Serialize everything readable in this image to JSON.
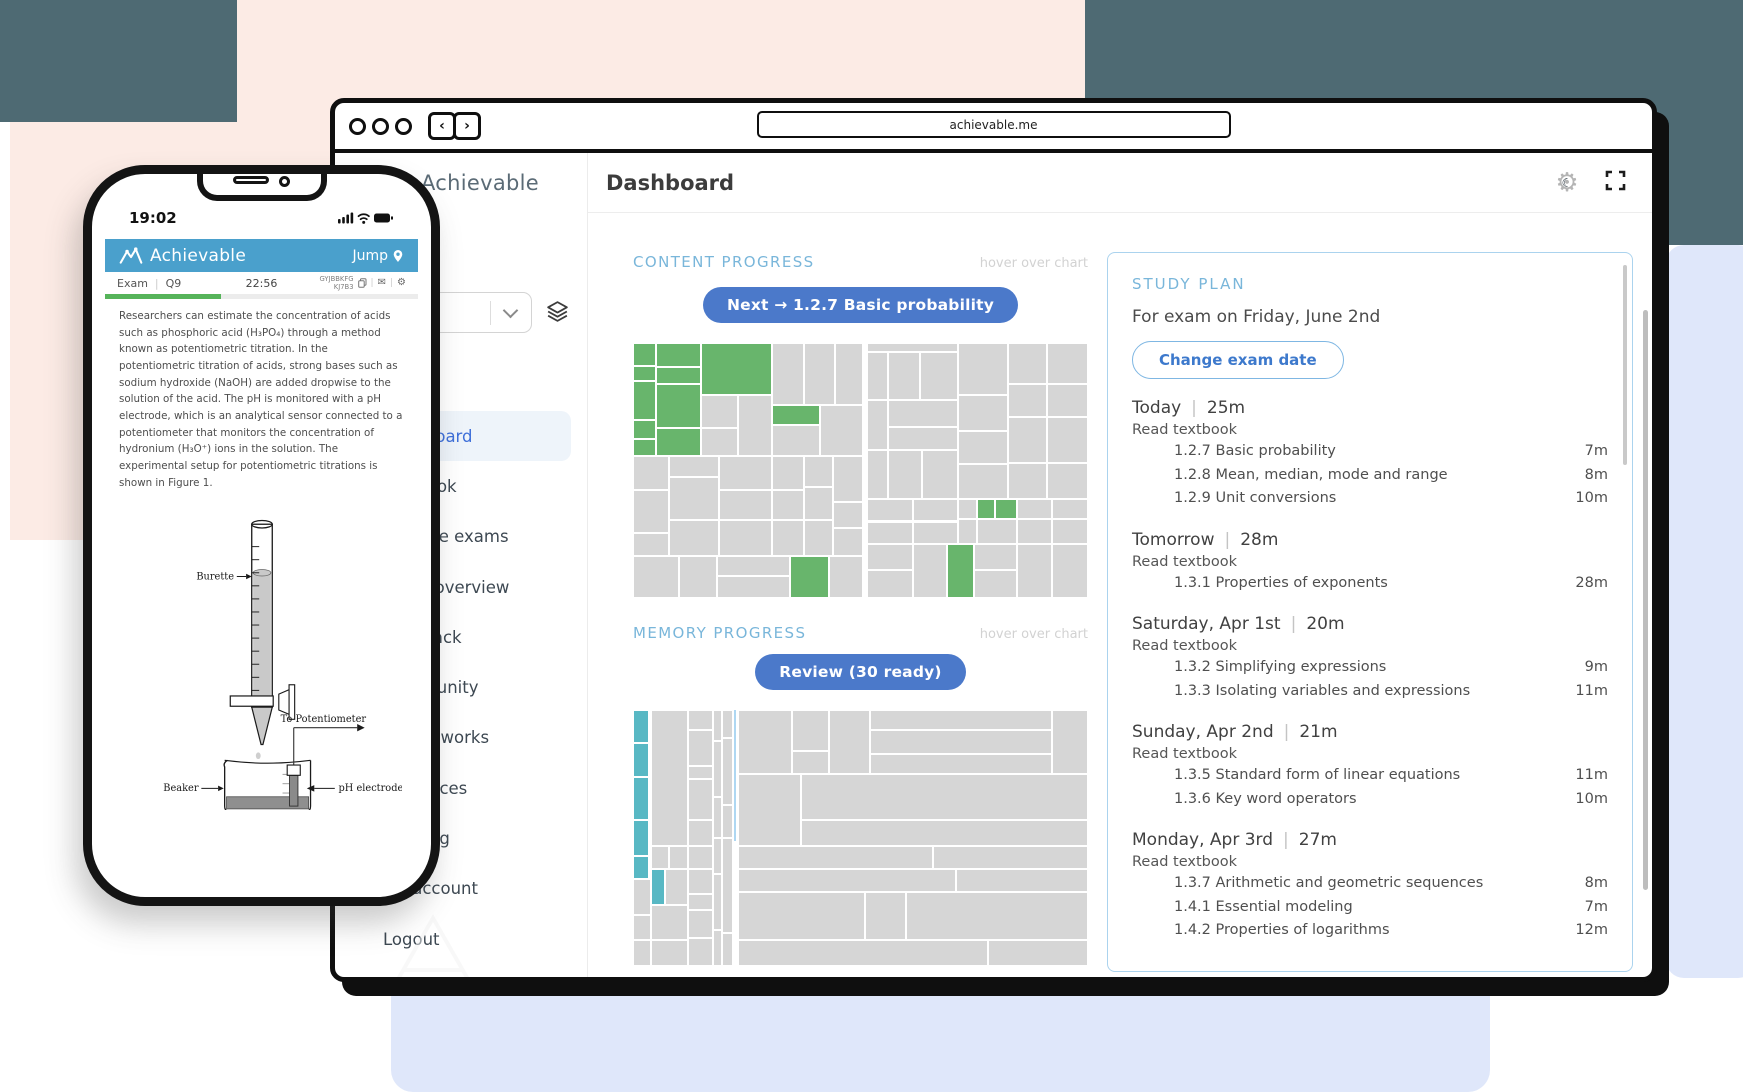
{
  "decor": {
    "pink": "#fcebe5",
    "slate": "#4e6a73",
    "lavender": "#dfe7fa"
  },
  "browser": {
    "url": "achievable.me",
    "back": "‹",
    "forward": "›"
  },
  "app": {
    "brand": "Achievable",
    "page_title": "Dashboard",
    "header_icons": [
      "dark-mode-gear-moon",
      "fullscreen-expand"
    ]
  },
  "sidebar": {
    "active_index": 0,
    "items": [
      "Dashboard",
      "Textbook",
      "Practice exams",
      "Exam overview",
      "Feedback",
      "Community",
      "How it works",
      "Resources",
      "Tutoring",
      "My account",
      "Logout"
    ]
  },
  "content_progress": {
    "title": "CONTENT PROGRESS",
    "hint": "hover over chart",
    "button": "Next → 1.2.7 Basic probability",
    "colors": {
      "done": "#68b56c",
      "todo": "#d6d6d6"
    },
    "cells": [
      [
        0,
        0,
        5,
        9,
        "g"
      ],
      [
        0,
        9,
        5,
        6,
        "g"
      ],
      [
        0,
        15,
        5,
        15,
        "g"
      ],
      [
        0,
        30,
        5,
        7.5,
        "g"
      ],
      [
        0,
        37.5,
        5,
        7,
        "g"
      ],
      [
        5,
        0,
        10,
        9.5,
        "g"
      ],
      [
        5,
        9.5,
        10,
        6.5,
        "g"
      ],
      [
        5,
        16,
        10,
        17.5,
        "g"
      ],
      [
        5,
        33.5,
        10,
        11,
        "g"
      ],
      [
        15,
        0,
        15.5,
        20.5,
        "g"
      ],
      [
        30.5,
        24.5,
        10.5,
        7.5,
        "g"
      ],
      [
        34.5,
        83.5,
        8.5,
        16.5,
        "g"
      ],
      [
        75.5,
        61,
        4,
        8,
        "g"
      ],
      [
        79.5,
        61,
        5,
        8,
        "g"
      ],
      [
        69,
        79,
        6,
        21,
        "g"
      ],
      [
        15,
        20.5,
        8,
        13
      ],
      [
        15,
        33.5,
        8,
        11
      ],
      [
        23,
        20.5,
        7.5,
        24
      ],
      [
        30.5,
        0,
        7,
        24.5
      ],
      [
        37.5,
        0,
        7,
        24.5
      ],
      [
        44.5,
        0,
        6,
        24.5
      ],
      [
        30.5,
        32,
        10.5,
        12.5
      ],
      [
        41,
        24.5,
        9.5,
        20
      ],
      [
        0,
        44.5,
        8,
        13
      ],
      [
        0,
        57.5,
        8,
        17
      ],
      [
        0,
        74.5,
        8,
        9
      ],
      [
        8,
        44.5,
        11,
        8
      ],
      [
        8,
        52.5,
        11,
        17
      ],
      [
        8,
        69.5,
        11,
        14
      ],
      [
        19,
        44.5,
        11.5,
        13
      ],
      [
        19,
        57.5,
        11.5,
        12
      ],
      [
        19,
        69.5,
        11.5,
        14
      ],
      [
        30.5,
        44.5,
        7,
        13
      ],
      [
        30.5,
        57.5,
        7,
        12
      ],
      [
        30.5,
        69.5,
        7,
        14
      ],
      [
        37.5,
        44.5,
        6.5,
        12
      ],
      [
        37.5,
        56.5,
        6.5,
        13
      ],
      [
        37.5,
        69.5,
        6.5,
        14
      ],
      [
        44,
        44.5,
        6.5,
        18
      ],
      [
        44,
        62.5,
        6.5,
        10
      ],
      [
        44,
        72.5,
        6.5,
        11
      ],
      [
        0,
        83.5,
        10,
        16.5
      ],
      [
        10,
        83.5,
        8.5,
        16.5
      ],
      [
        18.5,
        83.5,
        16,
        8
      ],
      [
        18.5,
        91.5,
        16,
        8.5
      ],
      [
        43,
        83.5,
        7.5,
        16.5
      ],
      [
        51.5,
        0,
        20,
        3.5
      ],
      [
        51.5,
        3.5,
        4.5,
        19
      ],
      [
        56,
        3.5,
        7,
        19
      ],
      [
        63,
        3.5,
        8.5,
        19
      ],
      [
        71.5,
        0,
        11,
        20.5
      ],
      [
        82.5,
        0,
        8.5,
        16
      ],
      [
        91,
        0,
        9,
        16
      ],
      [
        82.5,
        16,
        8.5,
        13
      ],
      [
        91,
        16,
        9,
        13
      ],
      [
        51.5,
        22.5,
        4.5,
        19.5
      ],
      [
        56,
        22.5,
        15.5,
        10.5
      ],
      [
        56,
        33,
        15.5,
        9
      ],
      [
        71.5,
        20.5,
        11,
        14
      ],
      [
        71.5,
        34.5,
        11,
        13
      ],
      [
        82.5,
        29,
        8.5,
        18
      ],
      [
        91,
        29,
        9,
        18
      ],
      [
        51.5,
        42,
        4.5,
        19
      ],
      [
        56,
        42,
        7.5,
        19
      ],
      [
        63.5,
        42,
        8,
        19
      ],
      [
        71.5,
        47.5,
        11,
        13.5
      ],
      [
        82.5,
        47,
        8.5,
        14
      ],
      [
        91,
        47,
        9,
        14
      ],
      [
        51.5,
        61,
        10,
        9
      ],
      [
        61.5,
        61,
        10,
        9
      ],
      [
        71.5,
        61,
        4,
        8
      ],
      [
        84.5,
        61,
        7.5,
        8
      ],
      [
        92,
        61,
        8,
        8
      ],
      [
        51.5,
        70,
        10,
        9
      ],
      [
        61.5,
        70,
        10,
        9
      ],
      [
        71.5,
        69,
        4,
        10
      ],
      [
        75.5,
        69,
        9,
        10
      ],
      [
        84.5,
        69,
        7.5,
        10
      ],
      [
        92,
        69,
        8,
        10
      ],
      [
        51.5,
        79,
        10,
        10
      ],
      [
        51.5,
        89,
        10,
        11
      ],
      [
        61.5,
        79,
        7.5,
        21
      ],
      [
        75,
        79,
        9.5,
        10
      ],
      [
        75,
        89,
        9.5,
        11
      ],
      [
        84.5,
        79,
        7.5,
        21
      ],
      [
        92,
        79,
        8,
        21
      ]
    ]
  },
  "memory_progress": {
    "title": "MEMORY PROGRESS",
    "hint": "hover over chart",
    "button": "Review (30 ready)",
    "colors": {
      "fresh": "#58b8c4",
      "todo": "#d6d6d6",
      "accent_line": "#aed7f2"
    },
    "cells": [
      [
        0,
        0,
        3.5,
        13,
        "t"
      ],
      [
        0,
        13,
        3.5,
        13,
        "t"
      ],
      [
        0,
        26,
        3.5,
        17,
        "t"
      ],
      [
        0,
        43,
        3.5,
        14,
        "t"
      ],
      [
        0,
        57,
        3.5,
        9,
        "t"
      ],
      [
        4,
        62,
        3,
        14,
        "t"
      ],
      [
        0,
        66,
        4,
        14
      ],
      [
        0,
        80,
        4,
        10
      ],
      [
        0,
        90,
        4,
        10
      ],
      [
        4,
        0,
        8,
        53
      ],
      [
        4,
        53,
        4,
        9
      ],
      [
        8,
        53,
        4,
        9
      ],
      [
        7,
        62,
        5,
        14
      ],
      [
        4,
        76,
        8,
        14
      ],
      [
        4,
        90,
        8,
        10
      ],
      [
        12,
        0,
        5.5,
        8
      ],
      [
        12,
        8,
        5.5,
        14
      ],
      [
        12,
        22,
        5.5,
        5
      ],
      [
        12,
        27,
        5.5,
        16
      ],
      [
        12,
        43,
        5.5,
        10
      ],
      [
        12,
        53,
        5.5,
        9
      ],
      [
        12,
        62,
        5.5,
        10
      ],
      [
        12,
        72,
        5.5,
        6
      ],
      [
        12,
        78,
        5.5,
        11
      ],
      [
        12,
        89,
        5.5,
        11
      ],
      [
        17.5,
        0,
        2,
        12
      ],
      [
        17.5,
        12,
        2,
        22
      ],
      [
        17.5,
        34,
        2,
        16
      ],
      [
        17.5,
        50,
        2,
        14
      ],
      [
        17.5,
        64,
        2,
        22
      ],
      [
        17.5,
        86,
        2,
        14
      ],
      [
        19.5,
        0,
        2.5,
        11
      ],
      [
        19.5,
        11,
        2.5,
        26
      ],
      [
        19.5,
        37,
        2.5,
        13
      ],
      [
        19.5,
        50,
        2.5,
        37
      ],
      [
        19.5,
        87,
        2.5,
        13
      ],
      [
        23,
        0,
        12,
        25
      ],
      [
        35,
        0,
        8,
        16
      ],
      [
        35,
        16,
        8,
        9
      ],
      [
        43,
        0,
        9,
        25
      ],
      [
        52,
        0,
        40,
        8
      ],
      [
        52,
        8,
        40,
        9
      ],
      [
        52,
        17,
        40,
        8
      ],
      [
        92,
        0,
        8,
        25
      ],
      [
        23,
        25,
        14,
        28
      ],
      [
        37,
        25,
        63,
        18
      ],
      [
        37,
        43,
        63,
        10
      ],
      [
        23,
        53,
        43,
        9
      ],
      [
        66,
        53,
        34,
        9
      ],
      [
        23,
        62,
        48,
        9
      ],
      [
        71,
        62,
        29,
        9
      ],
      [
        23,
        71,
        28,
        19
      ],
      [
        51,
        71,
        9,
        19
      ],
      [
        60,
        71,
        40,
        19
      ],
      [
        23,
        90,
        55,
        10
      ],
      [
        78,
        90,
        22,
        10
      ]
    ]
  },
  "study_plan": {
    "title": "STUDY PLAN",
    "exam_line": "For exam on Friday, June 2nd",
    "change_button": "Change exam date",
    "days": [
      {
        "label": "Today",
        "total": "25m",
        "task": "Read textbook",
        "items": [
          {
            "name": "1.2.7 Basic probability",
            "time": "7m"
          },
          {
            "name": "1.2.8 Mean, median, mode and range",
            "time": "8m"
          },
          {
            "name": "1.2.9 Unit conversions",
            "time": "10m"
          }
        ]
      },
      {
        "label": "Tomorrow",
        "total": "28m",
        "task": "Read textbook",
        "items": [
          {
            "name": "1.3.1 Properties of exponents",
            "time": "28m"
          }
        ]
      },
      {
        "label": "Saturday, Apr 1st",
        "total": "20m",
        "task": "Read textbook",
        "items": [
          {
            "name": "1.3.2 Simplifying expressions",
            "time": "9m"
          },
          {
            "name": "1.3.3 Isolating variables and expressions",
            "time": "11m"
          }
        ]
      },
      {
        "label": "Sunday, Apr 2nd",
        "total": "21m",
        "task": "Read textbook",
        "items": [
          {
            "name": "1.3.5 Standard form of linear equations",
            "time": "11m"
          },
          {
            "name": "1.3.6 Key word operators",
            "time": "10m"
          }
        ]
      },
      {
        "label": "Monday, Apr 3rd",
        "total": "27m",
        "task": "Read textbook",
        "items": [
          {
            "name": "1.3.7 Arithmetic and geometric sequences",
            "time": "8m"
          },
          {
            "name": "1.4.1 Essential modeling",
            "time": "7m"
          },
          {
            "name": "1.4.2 Properties of logarithms",
            "time": "12m"
          }
        ]
      }
    ]
  },
  "phone": {
    "time": "19:02",
    "status_icons": [
      "cellular-signal",
      "wifi",
      "battery"
    ],
    "brand": "Achievable",
    "jump": "Jump",
    "exam_label": "Exam",
    "question_no": "Q9",
    "timer": "22:56",
    "code_line1": "GYJBBKFG",
    "code_line2": "KJ7B3",
    "exambar_icons": [
      "copy",
      "mail",
      "settings"
    ],
    "progress_pct": 37,
    "question": "Researchers can estimate the concentration of acids such as phosphoric acid (H₃PO₄) through a method known as potentiometric titration. In the potentiometric titration of acids, strong bases such as sodium hydroxide (NaOH) are added dropwise to the solution of the acid. The pH is monitored with a pH electrode, which is an analytical sensor connected to a potentiometer that monitors the concentration of hydronium (H₃O⁺) ions in the solution. The experimental setup for potentiometric titrations is shown in Figure 1.",
    "figure_labels": {
      "burette": "Burette",
      "potentiometer": "To Potentiometer",
      "beaker": "Beaker",
      "electrode": "pH electrode"
    }
  }
}
